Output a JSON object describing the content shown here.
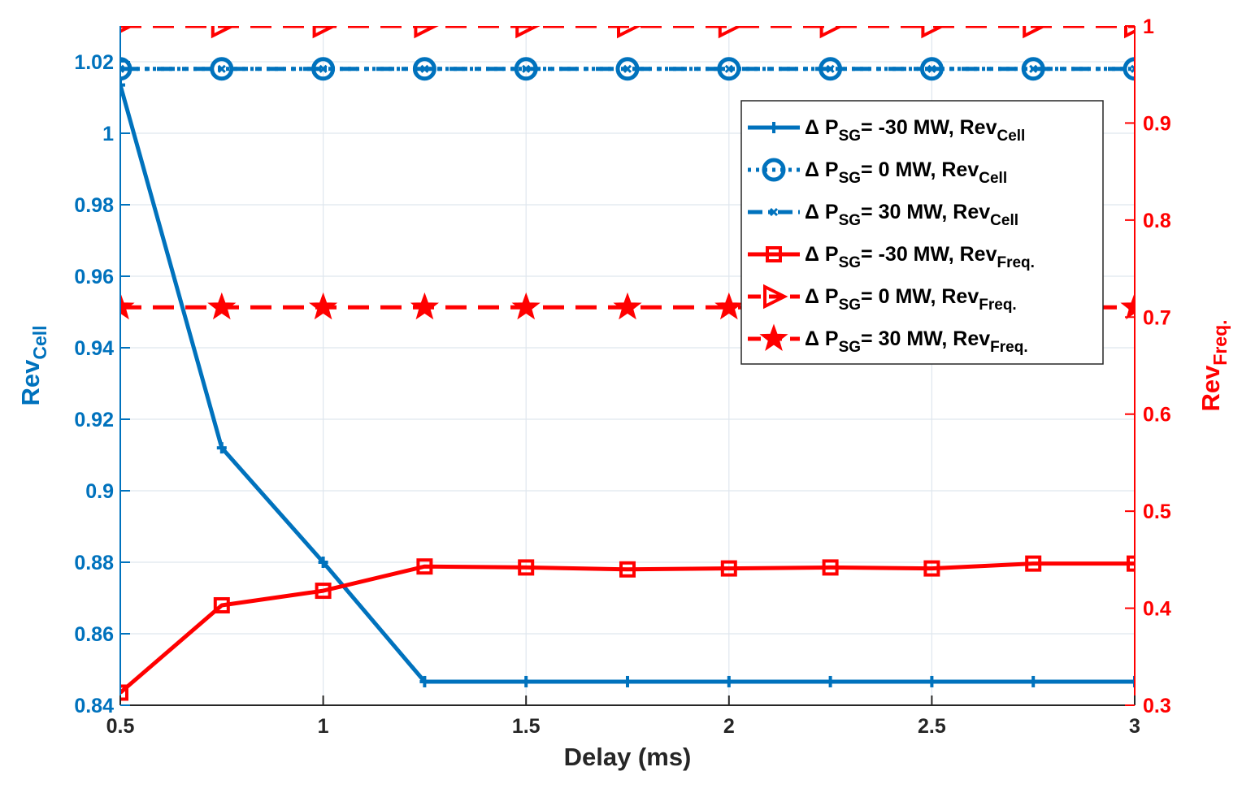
{
  "chart_data": {
    "type": "line",
    "xlabel": "Delay (ms)",
    "ylabel_left": {
      "main": "Rev",
      "sub": "Cell"
    },
    "ylabel_right": {
      "main": "Rev",
      "sub": "Freq."
    },
    "xlim": [
      0.5,
      3
    ],
    "ylim_left": [
      0.84,
      1.03
    ],
    "ylim_right": [
      0.3,
      1
    ],
    "grid": true,
    "legend_position": "top-right",
    "x_ticks": [
      0.5,
      1,
      1.5,
      2,
      2.5,
      3
    ],
    "x_tick_labels": [
      "0.5",
      "1",
      "1.5",
      "2",
      "2.5",
      "3"
    ],
    "y_left_ticks": [
      0.84,
      0.86,
      0.88,
      0.9,
      0.92,
      0.94,
      0.96,
      0.98,
      1.0,
      1.02
    ],
    "y_left_tick_labels": [
      "0.84",
      "0.86",
      "0.88",
      "0.9",
      "0.92",
      "0.94",
      "0.96",
      "0.98",
      "1",
      "1.02"
    ],
    "y_right_ticks": [
      0.3,
      0.4,
      0.5,
      0.6,
      0.7,
      0.8,
      0.9,
      1.0
    ],
    "y_right_tick_labels": [
      "0.3",
      "0.4",
      "0.5",
      "0.6",
      "0.7",
      "0.8",
      "0.9",
      "1"
    ],
    "x": [
      0.5,
      0.75,
      1.0,
      1.25,
      1.5,
      1.75,
      2.0,
      2.25,
      2.5,
      2.75,
      3.0
    ],
    "series": [
      {
        "name": "Δ P_SG= -30 MW, Rev_Cell",
        "legend": {
          "pre": "Δ P",
          "sub1": "SG",
          "mid": "= -30 MW, Rev",
          "sub2": "Cell"
        },
        "axis": "left",
        "color": "#0072BD",
        "linestyle": "solid",
        "marker": "plus",
        "values": [
          1.0135,
          0.912,
          0.88,
          0.8466,
          0.8466,
          0.8466,
          0.8466,
          0.8466,
          0.8466,
          0.8466,
          0.8466
        ]
      },
      {
        "name": "Δ P_SG= 0 MW, Rev_Cell",
        "legend": {
          "pre": "Δ P",
          "sub1": "SG",
          "mid": "=  0 MW, Rev",
          "sub2": "Cell"
        },
        "axis": "left",
        "color": "#0072BD",
        "linestyle": "dotted",
        "marker": "circle",
        "values": [
          1.018,
          1.018,
          1.018,
          1.018,
          1.018,
          1.018,
          1.018,
          1.018,
          1.018,
          1.018,
          1.018
        ]
      },
      {
        "name": "Δ P_SG= 30 MW, Rev_Cell",
        "legend": {
          "pre": "Δ P",
          "sub1": "SG",
          "mid": "=  30 MW, Rev",
          "sub2": "Cell"
        },
        "axis": "left",
        "color": "#0072BD",
        "linestyle": "dashdot",
        "marker": "x",
        "values": [
          1.018,
          1.018,
          1.018,
          1.018,
          1.018,
          1.018,
          1.018,
          1.018,
          1.018,
          1.018,
          1.018
        ]
      },
      {
        "name": "Δ P_SG= -30 MW, Rev_Freq.",
        "legend": {
          "pre": "Δ P",
          "sub1": "SG",
          "mid": "= -30 MW, Rev",
          "sub2": "Freq."
        },
        "axis": "right",
        "color": "#FF0000",
        "linestyle": "solid",
        "marker": "square",
        "values": [
          0.313,
          0.403,
          0.418,
          0.443,
          0.442,
          0.44,
          0.441,
          0.442,
          0.441,
          0.446,
          0.446
        ]
      },
      {
        "name": "Δ P_SG= 0 MW, Rev_Freq.",
        "legend": {
          "pre": "Δ P",
          "sub1": "SG",
          "mid": "=  0 MW, Rev",
          "sub2": "Freq."
        },
        "axis": "right",
        "color": "#FF0000",
        "linestyle": "dashed",
        "marker": "triangle-right",
        "values": [
          1.0,
          1.0,
          1.0,
          1.0,
          1.0,
          1.0,
          1.0,
          1.0,
          1.0,
          1.0,
          1.0
        ]
      },
      {
        "name": "Δ P_SG= 30 MW, Rev_Freq.",
        "legend": {
          "pre": "Δ P",
          "sub1": "SG",
          "mid": "= 30 MW, Rev",
          "sub2": "Freq."
        },
        "axis": "right",
        "color": "#FF0000",
        "linestyle": "dashed",
        "marker": "pentagram",
        "values": [
          0.71,
          0.71,
          0.71,
          0.71,
          0.71,
          0.71,
          0.71,
          0.71,
          0.71,
          0.71,
          0.71
        ]
      }
    ]
  }
}
